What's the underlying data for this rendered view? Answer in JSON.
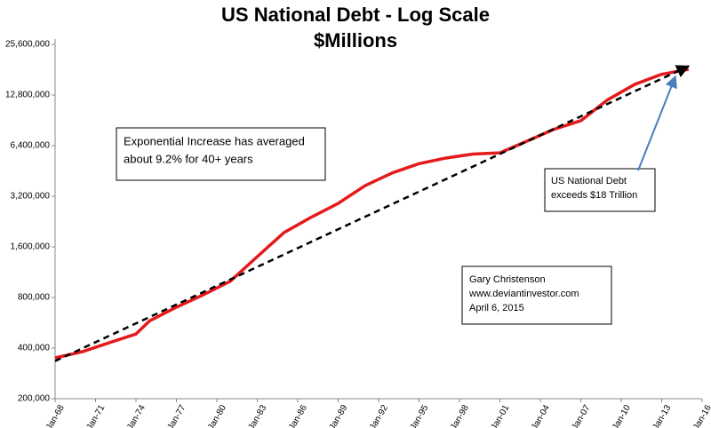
{
  "chart_data": {
    "type": "line",
    "title": "US National Debt - Log Scale",
    "subtitle": "$Millions",
    "log_scale": true,
    "grid": false,
    "x": [
      1968,
      1970,
      1972,
      1974,
      1975,
      1977,
      1979,
      1981,
      1983,
      1985,
      1987,
      1989,
      1991,
      1993,
      1995,
      1997,
      1999,
      2001,
      2003,
      2005,
      2007,
      2009,
      2011,
      2013,
      2015
    ],
    "series": [
      {
        "color": "#e41a1c",
        "values": [
          350000,
          380000,
          430000,
          485000,
          580000,
          700000,
          830000,
          1000000,
          1400000,
          1950000,
          2400000,
          2900000,
          3700000,
          4400000,
          5000000,
          5400000,
          5700000,
          5800000,
          6800000,
          8000000,
          9000000,
          12000000,
          14800000,
          17000000,
          18200000
        ]
      },
      {
        "color": "#000000",
        "dashed": true,
        "x": [
          1968,
          2015
        ],
        "values": [
          335000,
          19000000
        ]
      }
    ],
    "xlim": [
      1968,
      2016
    ],
    "xticks": [
      {
        "value": 1968,
        "label": "Jan-68"
      },
      {
        "value": 1971,
        "label": "Jan-71"
      },
      {
        "value": 1974,
        "label": "Jan-74"
      },
      {
        "value": 1977,
        "label": "Jan-77"
      },
      {
        "value": 1980,
        "label": "Jan-80"
      },
      {
        "value": 1983,
        "label": "Jan-83"
      },
      {
        "value": 1986,
        "label": "Jan-86"
      },
      {
        "value": 1989,
        "label": "Jan-89"
      },
      {
        "value": 1992,
        "label": "Jan-92"
      },
      {
        "value": 1995,
        "label": "Jan-95"
      },
      {
        "value": 1998,
        "label": "Jan-98"
      },
      {
        "value": 2001,
        "label": "Jan-01"
      },
      {
        "value": 2004,
        "label": "Jan-04"
      },
      {
        "value": 2007,
        "label": "Jan-07"
      },
      {
        "value": 2010,
        "label": "Jan-10"
      },
      {
        "value": 2013,
        "label": "Jan-13"
      },
      {
        "value": 2016,
        "label": "Jan-16"
      }
    ],
    "ylim": [
      200000,
      25600000
    ],
    "yticks": [
      {
        "value": 200000,
        "label": "200,000"
      },
      {
        "value": 400000,
        "label": "400,000"
      },
      {
        "value": 800000,
        "label": "800,000"
      },
      {
        "value": 1600000,
        "label": "1,600,000"
      },
      {
        "value": 3200000,
        "label": "3,200,000"
      },
      {
        "value": 6400000,
        "label": "6,400,000"
      },
      {
        "value": 12800000,
        "label": "12,800,000"
      },
      {
        "value": 25600000,
        "label": "25,600,000"
      }
    ],
    "annotations": [
      {
        "lines": [
          "Exponential Increase has averaged",
          "about 9.2% for 40+ years"
        ]
      },
      {
        "lines": [
          "US National Debt",
          "exceeds $18 Trillion"
        ]
      },
      {
        "lines": [
          "Gary Christenson",
          "www.deviantinvestor.com",
          "April 6, 2015"
        ]
      }
    ]
  }
}
